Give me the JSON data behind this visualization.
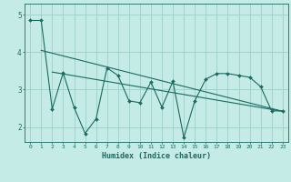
{
  "xlabel": "Humidex (Indice chaleur)",
  "bg_color": "#c5ebe7",
  "grid_color": "#9ecfca",
  "line_color": "#1a6b60",
  "xlim": [
    -0.5,
    23.5
  ],
  "ylim": [
    1.6,
    5.3
  ],
  "yticks": [
    2,
    3,
    4,
    5
  ],
  "xticks": [
    0,
    1,
    2,
    3,
    4,
    5,
    6,
    7,
    8,
    9,
    10,
    11,
    12,
    13,
    14,
    15,
    16,
    17,
    18,
    19,
    20,
    21,
    22,
    23
  ],
  "series1_x": [
    0,
    1,
    2,
    3,
    4,
    5,
    6,
    7,
    8,
    9,
    10,
    11,
    12,
    13,
    14,
    15,
    16,
    17,
    18,
    19,
    20,
    21,
    22,
    23
  ],
  "series1_y": [
    4.85,
    4.85,
    2.48,
    3.45,
    2.52,
    1.83,
    2.22,
    3.58,
    3.38,
    2.7,
    2.65,
    3.2,
    2.53,
    3.22,
    1.72,
    2.7,
    3.28,
    3.43,
    3.43,
    3.38,
    3.33,
    3.08,
    2.43,
    2.43
  ],
  "series2_x": [
    1,
    23
  ],
  "series2_y": [
    4.05,
    2.42
  ],
  "series3_x": [
    2,
    23
  ],
  "series3_y": [
    3.47,
    2.42
  ]
}
